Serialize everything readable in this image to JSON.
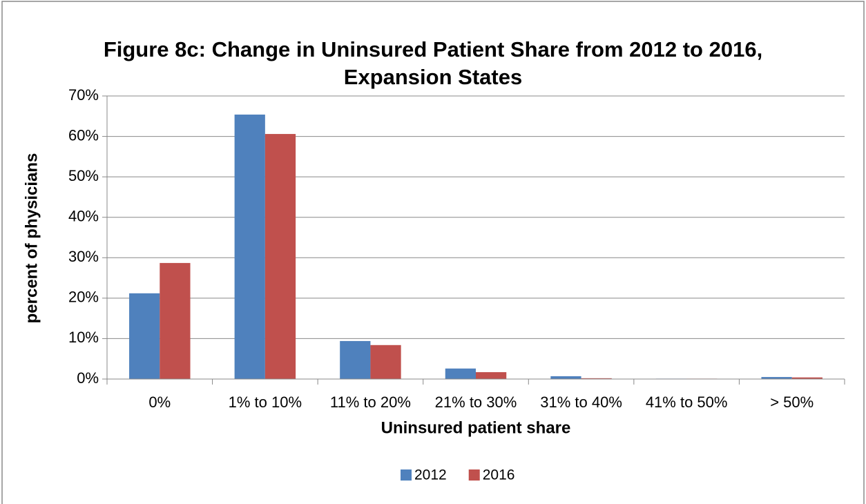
{
  "chart_data": {
    "type": "bar",
    "title": "Figure 8c: Change in Uninsured Patient Share from 2012 to 2016, Expansion States",
    "x_label": "Uninsured patient share",
    "y_label": "percent of physicians",
    "categories": [
      "0%",
      "1% to 10%",
      "11% to 20%",
      "21% to 30%",
      "31% to 40%",
      "41% to 50%",
      "> 50%"
    ],
    "series": [
      {
        "name": "2012",
        "color": "#4f81bd",
        "values": [
          21.2,
          65.4,
          9.4,
          2.6,
          0.7,
          0.1,
          0.5
        ]
      },
      {
        "name": "2016",
        "color": "#c0504d",
        "values": [
          28.7,
          60.6,
          8.4,
          1.7,
          0.2,
          0.1,
          0.4
        ]
      }
    ],
    "ylim": [
      0,
      70
    ],
    "yticks": [
      {
        "value": 0,
        "label": "0%"
      },
      {
        "value": 10,
        "label": "10%"
      },
      {
        "value": 20,
        "label": "20%"
      },
      {
        "value": 30,
        "label": "30%"
      },
      {
        "value": 40,
        "label": "40%"
      },
      {
        "value": 50,
        "label": "50%"
      },
      {
        "value": 60,
        "label": "60%"
      },
      {
        "value": 70,
        "label": "70%"
      }
    ],
    "grid": true,
    "legend": "bottom"
  }
}
